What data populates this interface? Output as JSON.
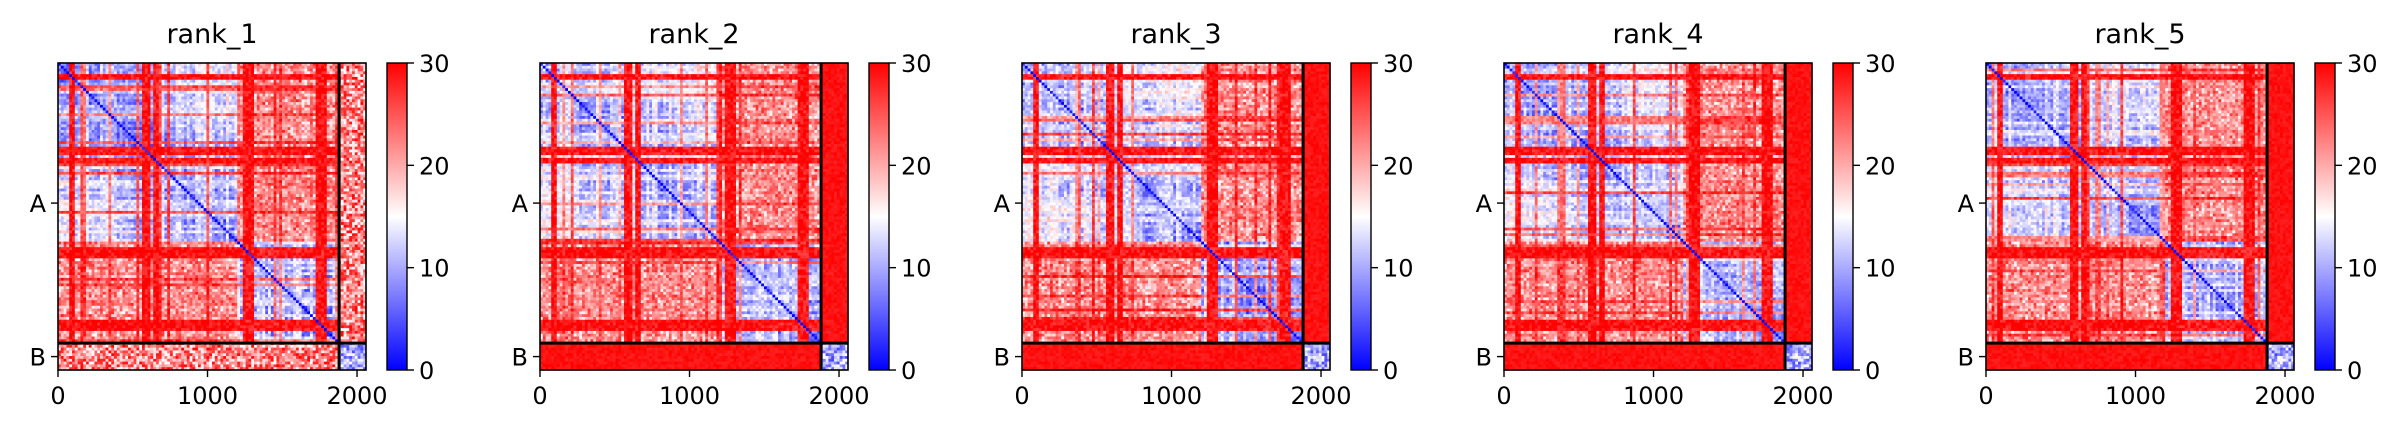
{
  "chart_data": {
    "type": "heatmap",
    "colormap": "bwr",
    "colors": {
      "low": "#0000ff",
      "mid": "#ffffff",
      "high": "#ff0000",
      "divider": "#000000"
    },
    "x_ticks": [
      "0",
      "1000",
      "2000"
    ],
    "x_tick_values": [
      0,
      1000,
      2000
    ],
    "y_ticks": [
      "A",
      "B"
    ],
    "colorbar_ticks": [
      "0",
      "10",
      "20",
      "30"
    ],
    "colorbar_tick_values": [
      0,
      10,
      20,
      30
    ],
    "vmin": 0,
    "vmax": 30,
    "chain_A_end": 1880,
    "total_length": 2060,
    "panels": [
      {
        "title": "rank_1"
      },
      {
        "title": "rank_2"
      },
      {
        "title": "rank_3"
      },
      {
        "title": "rank_4"
      },
      {
        "title": "rank_5"
      }
    ]
  }
}
